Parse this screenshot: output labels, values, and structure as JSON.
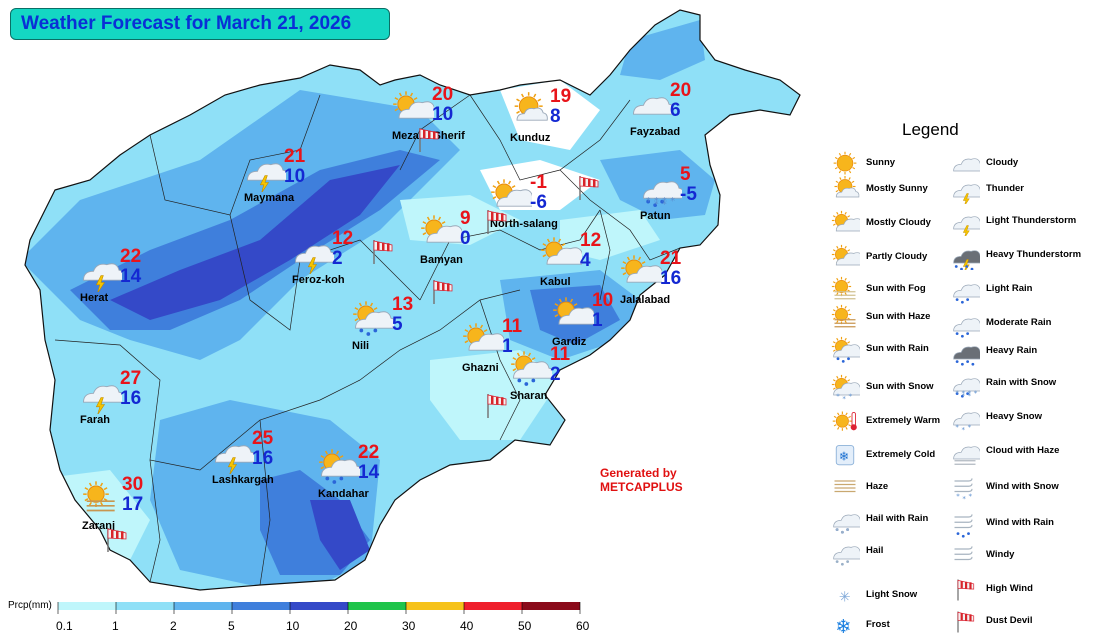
{
  "title": "Weather Forecast for March 21, 2026",
  "generated_by": [
    "Generated by",
    "METCAPPLUS"
  ],
  "colors": {
    "title_bg": "#14d7c3",
    "max_temp": "#e8141a",
    "min_temp": "#1428d2"
  },
  "colorbar": {
    "label": "Prcp(mm)",
    "ticks": [
      "0.1",
      "1",
      "2",
      "5",
      "10",
      "20",
      "30",
      "40",
      "50",
      "60"
    ],
    "colors": [
      "#bff6fb",
      "#8fe0f7",
      "#5fb4ee",
      "#3f7fdc",
      "#3449c8",
      "#1fc44a",
      "#f6c21a",
      "#ef1f2c",
      "#8a0a1a"
    ]
  },
  "cities": [
    {
      "name": "Mezar-I-Sherif",
      "max": "20",
      "min": "10",
      "icon": "partly-cloudy-icon"
    },
    {
      "name": "Kunduz",
      "max": "19",
      "min": "8",
      "icon": "mostly-sunny-icon"
    },
    {
      "name": "Fayzabad",
      "max": "20",
      "min": "6",
      "icon": "cloudy-icon"
    },
    {
      "name": "Maymana",
      "max": "21",
      "min": "10",
      "icon": "light-thunderstorm-icon"
    },
    {
      "name": "North-salang",
      "max": "-1",
      "min": "-6",
      "icon": "mostly-cloudy-icon"
    },
    {
      "name": "Patun",
      "max": "5",
      "min": "-5",
      "icon": "rain-with-snow-icon"
    },
    {
      "name": "Bamyan",
      "max": "9",
      "min": "0",
      "icon": "partly-cloudy-icon"
    },
    {
      "name": "Feroz-koh",
      "max": "12",
      "min": "2",
      "icon": "light-thunderstorm-icon"
    },
    {
      "name": "Kabul",
      "max": "12",
      "min": "4",
      "icon": "partly-cloudy-icon"
    },
    {
      "name": "Jalalabad",
      "max": "21",
      "min": "16",
      "icon": "partly-cloudy-icon"
    },
    {
      "name": "Herat",
      "max": "22",
      "min": "14",
      "icon": "light-thunderstorm-icon"
    },
    {
      "name": "Nili",
      "max": "13",
      "min": "5",
      "icon": "sun-with-rain-icon"
    },
    {
      "name": "Gardiz",
      "max": "10",
      "min": "1",
      "icon": "partly-cloudy-icon"
    },
    {
      "name": "Ghazni",
      "max": "11",
      "min": "1",
      "icon": "partly-cloudy-icon"
    },
    {
      "name": "Sharan",
      "max": "11",
      "min": "2",
      "icon": "sun-with-rain-icon"
    },
    {
      "name": "Farah",
      "max": "27",
      "min": "16",
      "icon": "light-thunderstorm-icon"
    },
    {
      "name": "Lashkargah",
      "max": "25",
      "min": "16",
      "icon": "light-thunderstorm-icon"
    },
    {
      "name": "Kandahar",
      "max": "22",
      "min": "14",
      "icon": "sun-with-rain-icon"
    },
    {
      "name": "Zaranj",
      "max": "30",
      "min": "17",
      "icon": "sun-with-haze-icon"
    }
  ],
  "windsocks": [
    "high-wind-icon",
    "high-wind-icon",
    "high-wind-icon",
    "high-wind-icon",
    "high-wind-icon",
    "high-wind-icon",
    "high-wind-icon"
  ],
  "legend": {
    "title": "Legend",
    "items": [
      {
        "label": "Sunny",
        "icon": "sunny-icon"
      },
      {
        "label": "Mostly Sunny",
        "icon": "mostly-sunny-icon"
      },
      {
        "label": "Mostly Cloudy",
        "icon": "mostly-cloudy-icon"
      },
      {
        "label": "Partly Cloudy",
        "icon": "partly-cloudy-icon"
      },
      {
        "label": "Sun with Fog",
        "icon": "sun-with-fog-icon"
      },
      {
        "label": "Sun with Haze",
        "icon": "sun-with-haze-icon"
      },
      {
        "label": "Sun with Rain",
        "icon": "sun-with-rain-icon"
      },
      {
        "label": "Sun with Snow",
        "icon": "sun-with-snow-icon"
      },
      {
        "label": "Extremely Warm",
        "icon": "extremely-warm-icon"
      },
      {
        "label": "Extremely Cold",
        "icon": "extremely-cold-icon"
      },
      {
        "label": "Haze",
        "icon": "haze-icon"
      },
      {
        "label": "Hail with Rain",
        "icon": "hail-with-rain-icon"
      },
      {
        "label": "Hail",
        "icon": "hail-icon"
      },
      {
        "label": "Light Snow",
        "icon": "light-snow-icon"
      },
      {
        "label": "Frost",
        "icon": "frost-icon"
      },
      {
        "label": "Cloudy",
        "icon": "cloudy-icon"
      },
      {
        "label": "Thunder",
        "icon": "thunder-icon"
      },
      {
        "label": "Light Thunderstorm",
        "icon": "light-thunderstorm-icon"
      },
      {
        "label": "Heavy Thunderstorm",
        "icon": "heavy-thunderstorm-icon"
      },
      {
        "label": "Light Rain",
        "icon": "light-rain-icon"
      },
      {
        "label": "Moderate Rain",
        "icon": "moderate-rain-icon"
      },
      {
        "label": "Heavy Rain",
        "icon": "heavy-rain-icon"
      },
      {
        "label": "Rain with Snow",
        "icon": "rain-with-snow-icon"
      },
      {
        "label": "Heavy Snow",
        "icon": "heavy-snow-icon"
      },
      {
        "label": "Cloud with Haze",
        "icon": "cloud-with-haze-icon"
      },
      {
        "label": "Wind with Snow",
        "icon": "wind-with-snow-icon"
      },
      {
        "label": "Wind with Rain",
        "icon": "wind-with-rain-icon"
      },
      {
        "label": "Windy",
        "icon": "windy-icon"
      },
      {
        "label": "High Wind",
        "icon": "high-wind-icon"
      },
      {
        "label": "Dust Devil",
        "icon": "dust-devil-icon"
      }
    ]
  }
}
